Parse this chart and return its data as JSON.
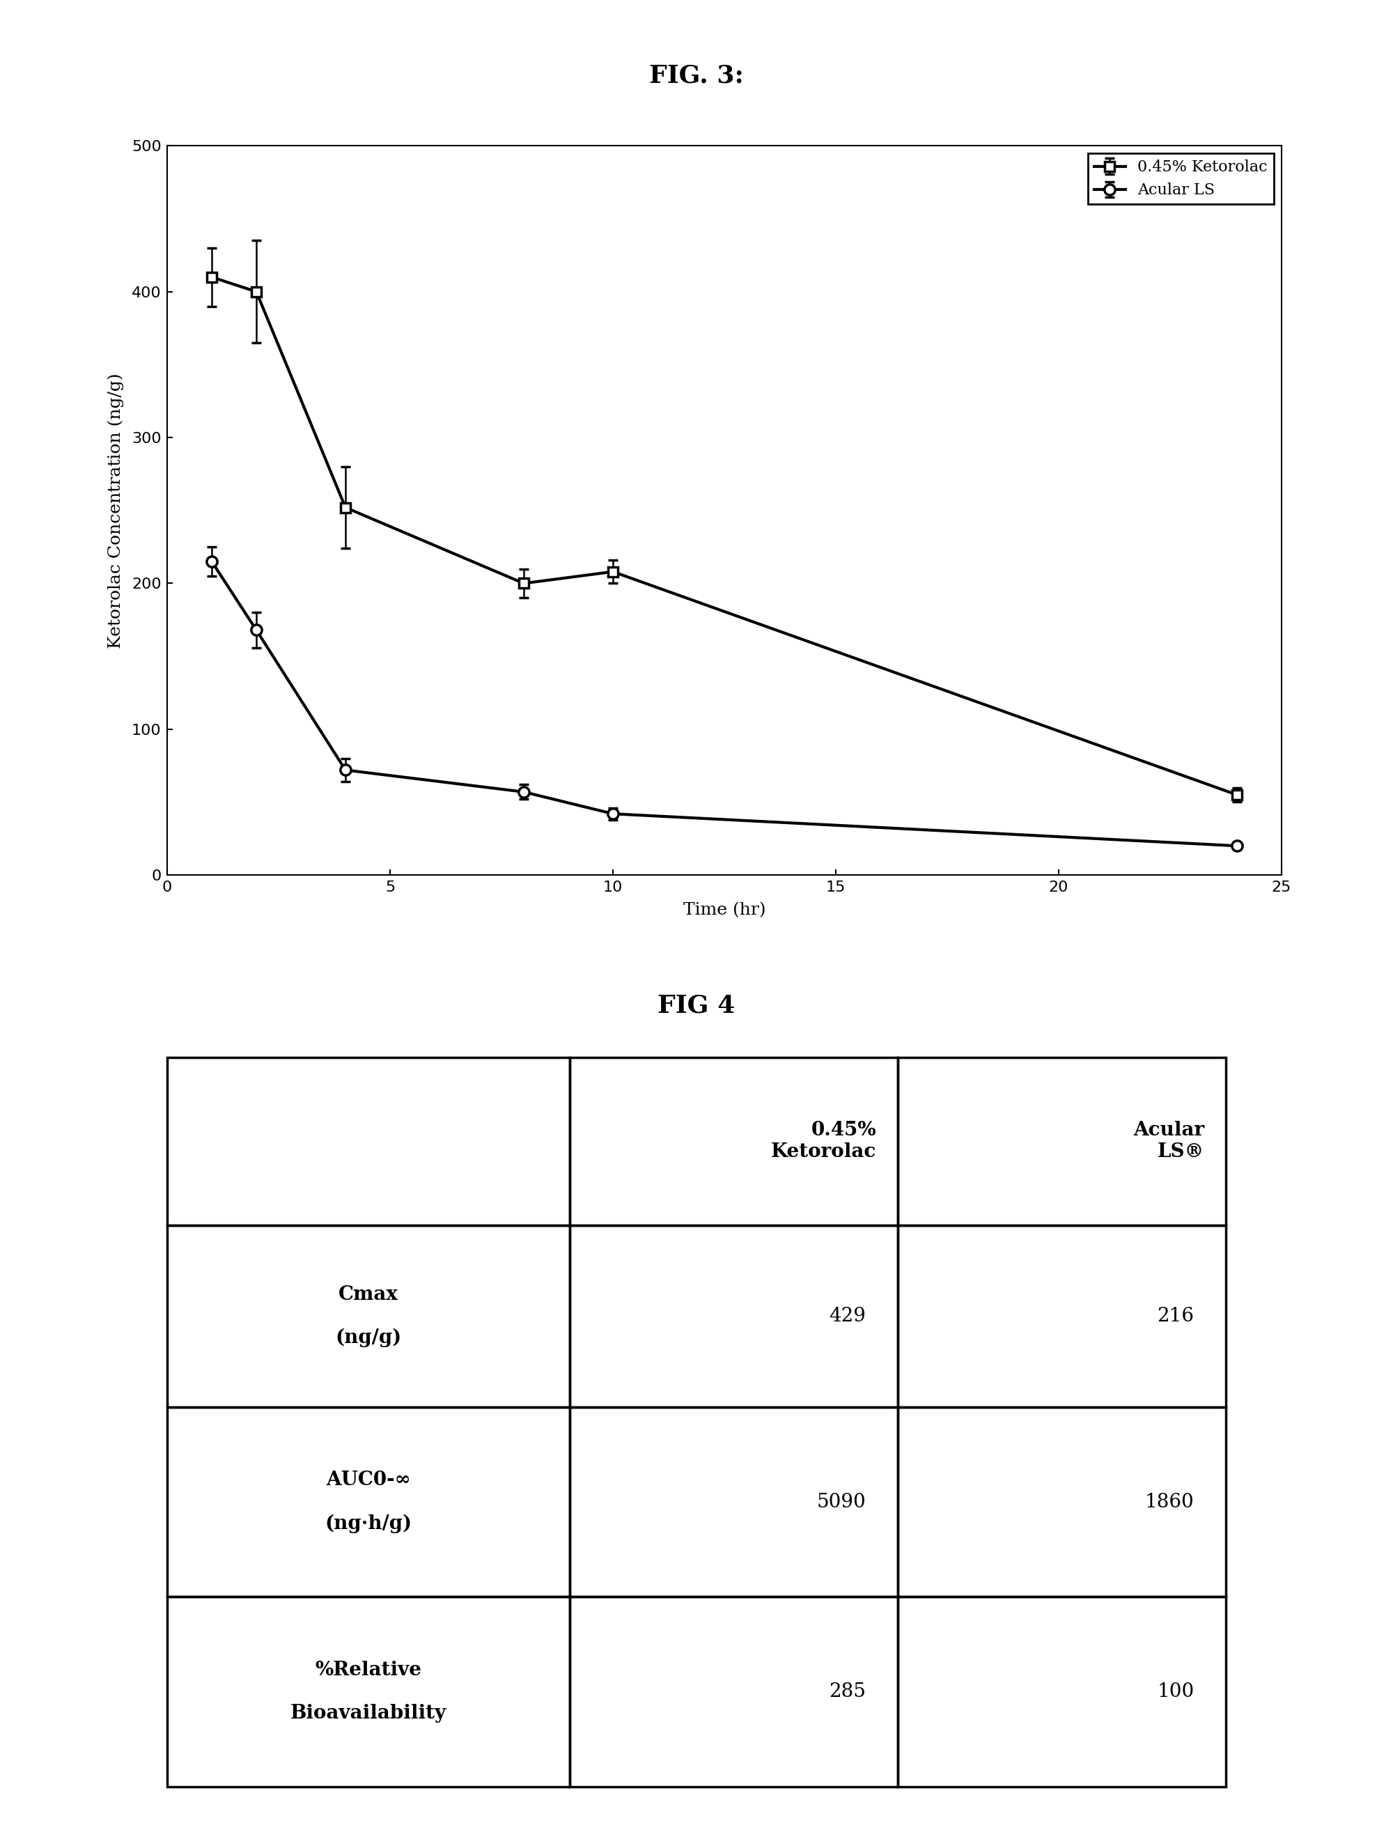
{
  "fig3_title": "FIG. 3:",
  "fig4_title": "FIG 4",
  "xlabel": "Time (hr)",
  "ylabel": "Ketorolac Concentration (ng/g)",
  "series1_label": "0.45% Ketorolac",
  "series2_label": "Acular LS",
  "series1_x": [
    1,
    2,
    4,
    8,
    10,
    24
  ],
  "series1_y": [
    410,
    400,
    252,
    200,
    208,
    55
  ],
  "series1_yerr": [
    20,
    35,
    28,
    10,
    8,
    5
  ],
  "series2_x": [
    1,
    2,
    4,
    8,
    10,
    24
  ],
  "series2_y": [
    215,
    168,
    72,
    57,
    42,
    20
  ],
  "series2_yerr": [
    10,
    12,
    8,
    5,
    4,
    2
  ],
  "xlim": [
    0,
    25
  ],
  "ylim": [
    0,
    500
  ],
  "xticks": [
    0,
    5,
    10,
    15,
    20,
    25
  ],
  "yticks": [
    0,
    100,
    200,
    300,
    400,
    500
  ],
  "background_color": "#ffffff",
  "line_color": "#000000",
  "fig3_title_fontsize": 26,
  "fig4_title_fontsize": 26,
  "axis_label_fontsize": 18,
  "tick_fontsize": 16,
  "legend_fontsize": 16,
  "table_header_fontsize": 20,
  "table_data_fontsize": 20,
  "table_label_fontsize": 20
}
